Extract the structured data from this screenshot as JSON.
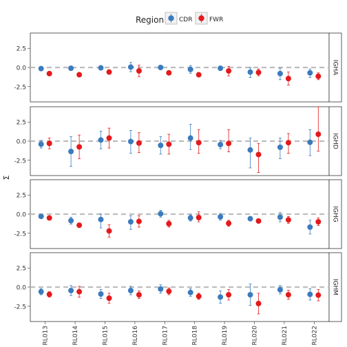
{
  "chart_data": {
    "type": "scatter",
    "legend": {
      "title": "Region",
      "position": "top",
      "entries": [
        {
          "name": "CDR",
          "color": "#3a7bbf"
        },
        {
          "name": "FWR",
          "color": "#e31a1c"
        }
      ]
    },
    "ylabel": "Σ",
    "xlabel": "",
    "categories": [
      "RL013",
      "RL014",
      "RL015",
      "RL016",
      "RL017",
      "RL018",
      "RL019",
      "RL020",
      "RL021",
      "RL022"
    ],
    "ylim": [
      -4.5,
      4.5
    ],
    "yticks": [
      {
        "value": 2.5,
        "label": "2.5"
      },
      {
        "value": 0,
        "label": "0.0"
      },
      {
        "value": -2.5,
        "label": "-2.5"
      }
    ],
    "reference_line": 0,
    "panels": [
      {
        "name": "IGHA",
        "series": [
          {
            "name": "CDR",
            "values": [
              -0.15,
              -0.1,
              -0.05,
              0.05,
              0.0,
              -0.25,
              -0.1,
              -0.6,
              -0.8,
              -0.7
            ],
            "lower": [
              -0.15,
              -0.1,
              -0.05,
              -0.55,
              -0.15,
              -0.75,
              -0.1,
              -1.3,
              -1.6,
              -1.3
            ],
            "upper": [
              -0.15,
              -0.1,
              -0.05,
              0.65,
              0.15,
              0.25,
              -0.1,
              0.0,
              -0.1,
              -0.2
            ]
          },
          {
            "name": "FWR",
            "values": [
              -0.8,
              -0.95,
              -0.6,
              -0.45,
              -0.7,
              -0.95,
              -0.45,
              -0.65,
              -1.45,
              -1.15
            ],
            "lower": [
              -0.8,
              -0.95,
              -0.6,
              -1.2,
              -0.7,
              -0.95,
              -1.1,
              -1.1,
              -2.3,
              -1.6
            ],
            "upper": [
              -0.8,
              -0.95,
              -0.6,
              0.3,
              -0.7,
              -0.95,
              0.15,
              -0.2,
              -0.6,
              -0.7
            ]
          }
        ]
      },
      {
        "name": "IGHD",
        "series": [
          {
            "name": "CDR",
            "values": [
              -0.4,
              -1.35,
              0.15,
              -0.05,
              -0.55,
              0.4,
              -0.45,
              -1.15,
              -0.8,
              -0.15
            ],
            "lower": [
              -0.9,
              -3.3,
              -1.0,
              -1.6,
              -1.7,
              -1.1,
              -1.0,
              -3.5,
              -2.3,
              -1.9
            ],
            "upper": [
              0.1,
              0.6,
              1.3,
              1.4,
              0.6,
              2.2,
              0.1,
              0.4,
              0.4,
              1.5
            ]
          },
          {
            "name": "FWR",
            "values": [
              -0.3,
              -0.75,
              0.4,
              -0.25,
              -0.4,
              -0.2,
              -0.3,
              -1.75,
              -0.2,
              0.9
            ],
            "lower": [
              -1.0,
              -2.3,
              -0.9,
              -1.5,
              -1.7,
              -1.6,
              -1.4,
              -4.1,
              -1.6,
              -1.3
            ],
            "upper": [
              0.4,
              0.8,
              1.7,
              1.1,
              0.9,
              1.5,
              1.5,
              -0.3,
              1.0,
              4.5
            ]
          }
        ]
      },
      {
        "name": "IGHG",
        "series": [
          {
            "name": "CDR",
            "values": [
              -0.3,
              -0.85,
              -0.7,
              -1.0,
              0.05,
              -0.5,
              -0.35,
              -0.6,
              -0.4,
              -1.7
            ],
            "lower": [
              -0.3,
              -1.3,
              -1.8,
              -2.0,
              -0.4,
              -0.9,
              -0.8,
              -0.6,
              -1.0,
              -2.6
            ],
            "upper": [
              -0.3,
              -0.4,
              0.0,
              -0.2,
              0.5,
              -0.1,
              0.1,
              -0.6,
              0.2,
              -0.8
            ]
          },
          {
            "name": "FWR",
            "values": [
              -0.5,
              -1.45,
              -2.2,
              -0.95,
              -1.25,
              -0.45,
              -1.2,
              -0.9,
              -0.75,
              -1.0
            ],
            "lower": [
              -0.5,
              -1.7,
              -3.0,
              -1.7,
              -1.7,
              -1.0,
              -1.6,
              -0.9,
              -1.2,
              -1.5
            ],
            "upper": [
              -0.5,
              -1.2,
              -1.4,
              -0.2,
              -0.8,
              0.3,
              -0.8,
              -0.9,
              -0.3,
              -0.5
            ]
          }
        ]
      },
      {
        "name": "IGHM",
        "series": [
          {
            "name": "CDR",
            "values": [
              -0.6,
              -0.45,
              -0.9,
              -0.45,
              -0.25,
              -0.7,
              -1.3,
              -1.0,
              -0.35,
              -0.95
            ],
            "lower": [
              -1.0,
              -1.1,
              -1.5,
              -1.0,
              -0.8,
              -1.2,
              -2.1,
              -2.4,
              -0.9,
              -1.7
            ],
            "upper": [
              -0.2,
              0.2,
              -0.3,
              0.1,
              0.3,
              -0.2,
              -0.5,
              0.4,
              0.2,
              -0.2
            ]
          },
          {
            "name": "FWR",
            "values": [
              -0.95,
              -0.6,
              -1.45,
              -1.0,
              -0.55,
              -1.2,
              -1.0,
              -2.15,
              -1.0,
              -1.05
            ],
            "lower": [
              -1.3,
              -1.3,
              -2.1,
              -1.5,
              -1.0,
              -1.6,
              -1.7,
              -3.5,
              -1.6,
              -1.8
            ],
            "upper": [
              -0.6,
              0.1,
              -0.8,
              -0.5,
              -0.1,
              -0.8,
              -0.3,
              -0.8,
              -0.4,
              -0.3
            ]
          }
        ]
      }
    ]
  }
}
